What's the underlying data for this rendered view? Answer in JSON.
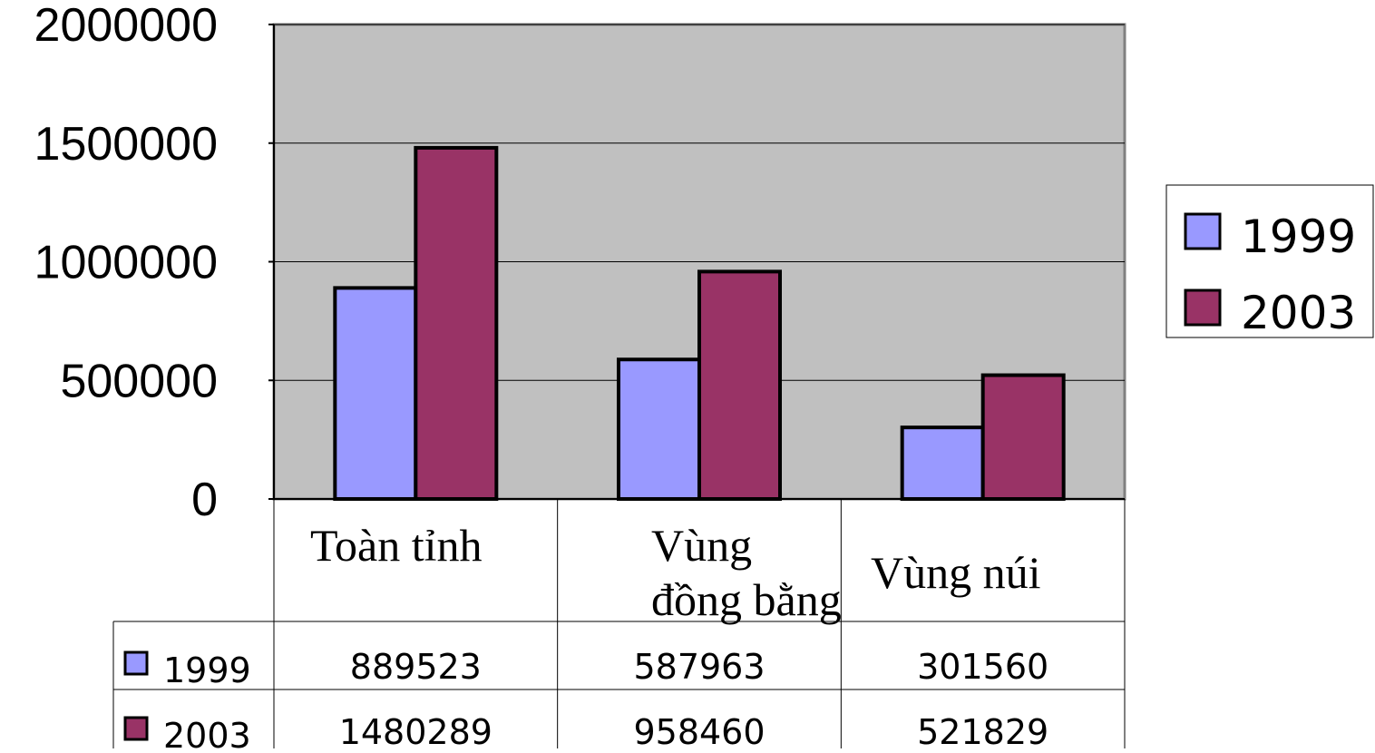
{
  "chart_data": {
    "type": "bar",
    "categories": [
      "Toàn tỉnh",
      "Vùng đồng bằng",
      "Vùng núi"
    ],
    "category_lines": [
      [
        "Toàn tỉnh"
      ],
      [
        "Vùng",
        "đồng bằng"
      ],
      [
        "Vùng núi"
      ]
    ],
    "series": [
      {
        "name": "1999",
        "values": [
          889523,
          587963,
          301560
        ],
        "color": "#9999ff"
      },
      {
        "name": "2003",
        "values": [
          1480289,
          958460,
          521829
        ],
        "color": "#993366"
      }
    ],
    "ylim": [
      0,
      2000000
    ],
    "yticks": [
      0,
      500000,
      1000000,
      1500000,
      2000000
    ],
    "ytick_labels": [
      "0",
      "500000",
      "1000000",
      "1500000",
      "2000000"
    ],
    "grid": true,
    "legend_position": "right",
    "plot_background": "#c0c0c0",
    "data_table": true
  }
}
